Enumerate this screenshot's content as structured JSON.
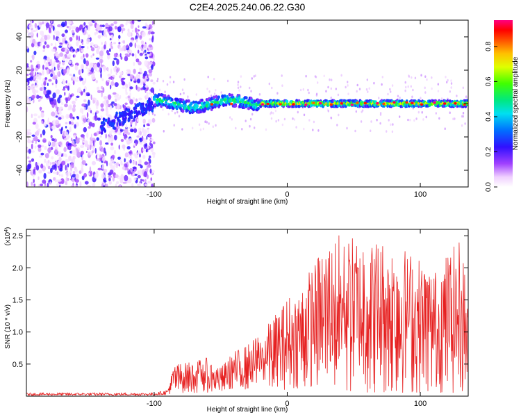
{
  "figure_title": "C2E4.2025.240.06.22.G30",
  "colorbar_label": "Normalized spectral amplitude",
  "colorbar_ticks": [
    "0.0",
    "0.2",
    "0.4",
    "0.6",
    "0.8"
  ],
  "chart_data": [
    {
      "type": "heatmap",
      "title": "C2E4.2025.240.06.22.G30",
      "xlabel": "Height of straight line (km)",
      "ylabel": "Frequency (Hz)",
      "xlim": [
        -196,
        136
      ],
      "ylim": [
        -50,
        50
      ],
      "x_ticks": [
        -100,
        0,
        100
      ],
      "y_ticks": [
        -40,
        -20,
        0,
        20,
        40
      ],
      "colorbar": {
        "label": "Normalized spectral amplitude",
        "range": [
          0,
          0.95
        ],
        "ticks": [
          0,
          0.2,
          0.4,
          0.6,
          0.8
        ]
      },
      "regions": [
        {
          "x_range": [
            -196,
            -100
          ],
          "description": "scattered low-amplitude noise across all frequencies"
        },
        {
          "x_range": [
            -100,
            -20
          ],
          "center_freq_hz": 0,
          "width_hz": 8,
          "peak_amplitude": 0.45
        },
        {
          "x_range": [
            -20,
            136
          ],
          "center_freq_hz": 0,
          "width_hz": 4,
          "peak_amplitude": 0.9
        }
      ]
    },
    {
      "type": "line",
      "xlabel": "Height of straight line (km)",
      "ylabel": "SNR (10 * v/v)",
      "y_scale_label": "(x10",
      "y_scale_exponent": "4",
      "xlim": [
        -196,
        136
      ],
      "ylim": [
        0,
        2.6
      ],
      "x_ticks": [
        -100,
        0,
        100
      ],
      "y_ticks": [
        0.5,
        1.0,
        1.5,
        2.0,
        2.5
      ],
      "y_tick_labels": [
        "0.5",
        "1.0",
        "1.5",
        "2.0",
        "2.5"
      ],
      "series": [
        {
          "name": "SNR",
          "color": "#e62020",
          "envelope": [
            {
              "x": -196,
              "min": 0.01,
              "max": 0.05
            },
            {
              "x": -100,
              "min": 0.01,
              "max": 0.05
            },
            {
              "x": -90,
              "min": 0.02,
              "max": 0.1
            },
            {
              "x": -85,
              "min": 0.05,
              "max": 0.5
            },
            {
              "x": -70,
              "min": 0.05,
              "max": 0.55
            },
            {
              "x": -60,
              "min": 0.05,
              "max": 0.6
            },
            {
              "x": -50,
              "min": 0.05,
              "max": 0.45
            },
            {
              "x": -40,
              "min": 0.08,
              "max": 0.7
            },
            {
              "x": -30,
              "min": 0.1,
              "max": 0.8
            },
            {
              "x": -20,
              "min": 0.1,
              "max": 1.0
            },
            {
              "x": -10,
              "min": 0.1,
              "max": 1.25
            },
            {
              "x": 0,
              "min": 0.1,
              "max": 1.55
            },
            {
              "x": 10,
              "min": 0.1,
              "max": 1.7
            },
            {
              "x": 20,
              "min": 0.05,
              "max": 2.1
            },
            {
              "x": 30,
              "min": 0.05,
              "max": 2.5
            },
            {
              "x": 50,
              "min": 0.05,
              "max": 2.55
            },
            {
              "x": 70,
              "min": 0.05,
              "max": 2.45
            },
            {
              "x": 90,
              "min": 0.05,
              "max": 2.3
            },
            {
              "x": 110,
              "min": 0.05,
              "max": 2.0
            },
            {
              "x": 130,
              "min": 0.05,
              "max": 2.45
            },
            {
              "x": 136,
              "min": 0.05,
              "max": 1.9
            }
          ]
        }
      ]
    }
  ]
}
